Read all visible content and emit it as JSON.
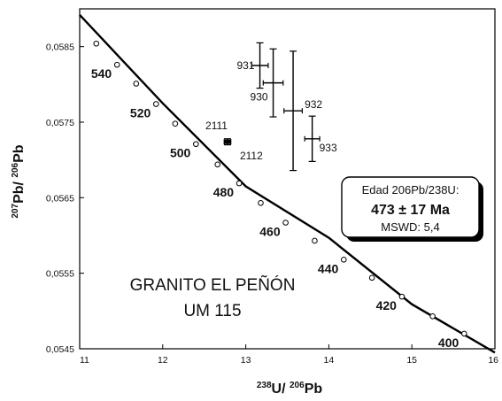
{
  "chart_data": {
    "type": "scatter",
    "subtype": "U-Pb concordia (Tera-Wasserburg) with error bars",
    "xlabel": {
      "sup1": "238",
      "main1": "U/ ",
      "sup2": "206",
      "main2": "Pb"
    },
    "ylabel": {
      "sup1": "207",
      "main1": "Pb/ ",
      "sup2": "206",
      "main2": "Pb"
    },
    "xlim": [
      11,
      16
    ],
    "ylim": [
      0.0545,
      0.059
    ],
    "x_ticks": [
      "11",
      "12",
      "13",
      "14",
      "15",
      "16"
    ],
    "y_ticks": [
      "0,0545",
      "0,0555",
      "0,0565",
      "0,0575",
      "0,0585"
    ],
    "grid": false,
    "concordia": {
      "line": [
        [
          11.0,
          0.05892
        ],
        [
          12.0,
          0.05775
        ],
        [
          13.0,
          0.05665
        ],
        [
          14.0,
          0.05597
        ],
        [
          15.0,
          0.05509
        ],
        [
          16.0,
          0.05445
        ]
      ],
      "markers": [
        [
          11.2,
          0.05854
        ],
        [
          11.45,
          0.05826
        ],
        [
          11.68,
          0.05801
        ],
        [
          11.92,
          0.05774
        ],
        [
          12.15,
          0.05748
        ],
        [
          12.4,
          0.05721
        ],
        [
          12.66,
          0.05694
        ],
        [
          12.92,
          0.05669
        ],
        [
          13.18,
          0.05643
        ],
        [
          13.48,
          0.05617
        ],
        [
          13.83,
          0.05593
        ],
        [
          14.18,
          0.05568
        ],
        [
          14.52,
          0.05544
        ],
        [
          14.88,
          0.05519
        ],
        [
          15.25,
          0.05493
        ],
        [
          15.63,
          0.0547
        ]
      ],
      "age_labels": [
        {
          "text": "540",
          "x": 11.45,
          "y": 0.05826
        },
        {
          "text": "520",
          "x": 11.92,
          "y": 0.05774
        },
        {
          "text": "500",
          "x": 12.4,
          "y": 0.05721
        },
        {
          "text": "480",
          "x": 12.92,
          "y": 0.05669
        },
        {
          "text": "460",
          "x": 13.48,
          "y": 0.05617
        },
        {
          "text": "440",
          "x": 14.18,
          "y": 0.05568
        },
        {
          "text": "420",
          "x": 14.88,
          "y": 0.05519
        },
        {
          "text": "400",
          "x": 15.63,
          "y": 0.0547
        }
      ]
    },
    "series": [
      {
        "label": "931",
        "x": 13.17,
        "y": 0.05825,
        "xerr": 0.1,
        "yerr": 0.0003
      },
      {
        "label": "930",
        "x": 13.33,
        "y": 0.05802,
        "xerr": 0.12,
        "yerr": 0.00045
      },
      {
        "label": "932",
        "x": 13.57,
        "y": 0.05765,
        "xerr": 0.11,
        "yerr": 0.00079
      },
      {
        "label": "933",
        "x": 13.8,
        "y": 0.05728,
        "xerr": 0.09,
        "yerr": 0.0003
      },
      {
        "label": "2111",
        "x": 12.78,
        "y": 0.05724,
        "xerr": 0.04,
        "yerr": 4e-05
      },
      {
        "label": "2112",
        "x": 12.78,
        "y": 0.05724,
        "xerr": 0.04,
        "yerr": 4e-05
      }
    ],
    "annotations": {
      "sample_title": [
        "GRANITO EL PEÑÓN",
        "UM 115"
      ],
      "age_box": {
        "line1": "Edad 206Pb/238U:",
        "line2": "473 ± 17 Ma",
        "line3": "MSWD: 5,4"
      }
    }
  }
}
